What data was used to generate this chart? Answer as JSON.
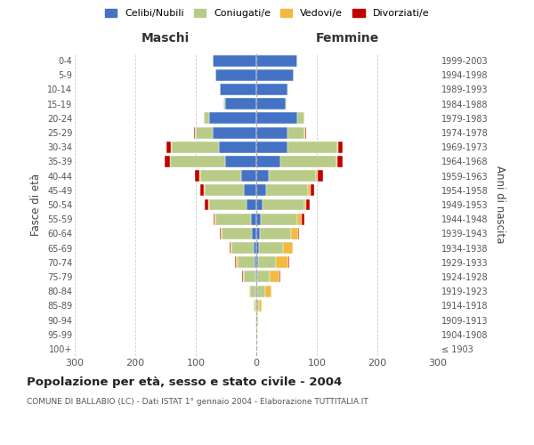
{
  "age_groups": [
    "100+",
    "95-99",
    "90-94",
    "85-89",
    "80-84",
    "75-79",
    "70-74",
    "65-69",
    "60-64",
    "55-59",
    "50-54",
    "45-49",
    "40-44",
    "35-39",
    "30-34",
    "25-29",
    "20-24",
    "15-19",
    "10-14",
    "5-9",
    "0-4"
  ],
  "birth_years": [
    "≤ 1903",
    "1904-1908",
    "1909-1913",
    "1914-1918",
    "1919-1923",
    "1924-1928",
    "1929-1933",
    "1934-1938",
    "1939-1943",
    "1944-1948",
    "1949-1953",
    "1954-1958",
    "1959-1963",
    "1964-1968",
    "1969-1973",
    "1974-1978",
    "1979-1983",
    "1984-1988",
    "1989-1993",
    "1994-1998",
    "1999-2003"
  ],
  "males_celibe": [
    0,
    0,
    0,
    0,
    1,
    2,
    3,
    5,
    7,
    9,
    16,
    20,
    25,
    52,
    62,
    72,
    78,
    52,
    60,
    68,
    72
  ],
  "males_coniugato": [
    0,
    0,
    1,
    3,
    9,
    18,
    28,
    36,
    50,
    58,
    62,
    65,
    68,
    90,
    78,
    28,
    9,
    2,
    1,
    0,
    0
  ],
  "males_vedovo": [
    0,
    0,
    0,
    1,
    2,
    2,
    3,
    2,
    2,
    2,
    1,
    2,
    1,
    1,
    1,
    1,
    0,
    0,
    0,
    0,
    0
  ],
  "males_divorziato": [
    0,
    0,
    0,
    0,
    0,
    1,
    1,
    1,
    1,
    2,
    6,
    5,
    7,
    9,
    7,
    2,
    0,
    0,
    0,
    0,
    0
  ],
  "females_nubile": [
    0,
    0,
    0,
    0,
    1,
    2,
    3,
    4,
    6,
    8,
    11,
    16,
    20,
    40,
    52,
    52,
    68,
    48,
    52,
    62,
    68
  ],
  "females_coniugata": [
    0,
    0,
    1,
    4,
    13,
    20,
    30,
    40,
    52,
    60,
    68,
    70,
    78,
    92,
    82,
    28,
    11,
    2,
    1,
    0,
    0
  ],
  "females_vedova": [
    0,
    1,
    2,
    5,
    11,
    16,
    20,
    16,
    11,
    7,
    4,
    3,
    3,
    2,
    1,
    1,
    0,
    0,
    0,
    0,
    0
  ],
  "females_divorziata": [
    0,
    0,
    0,
    0,
    0,
    1,
    1,
    1,
    1,
    4,
    5,
    7,
    9,
    9,
    7,
    2,
    0,
    0,
    0,
    0,
    0
  ],
  "color_celibe": "#4472C4",
  "color_coniugato": "#B8CC88",
  "color_vedovo": "#F4B942",
  "color_divorziato": "#C00000",
  "legend_labels": [
    "Celibi/Nubili",
    "Coniugati/e",
    "Vedovi/e",
    "Divorziati/e"
  ],
  "title": "Popolazione per età, sesso e stato civile - 2004",
  "subtitle": "COMUNE DI BALLABIO (LC) - Dati ISTAT 1° gennaio 2004 - Elaborazione TUTTITALIA.IT",
  "ylabel_left": "Fasce di età",
  "ylabel_right": "Anni di nascita",
  "label_maschi": "Maschi",
  "label_femmine": "Femmine",
  "xlim": 300,
  "bg_color": "#ffffff",
  "grid_color": "#cccccc"
}
